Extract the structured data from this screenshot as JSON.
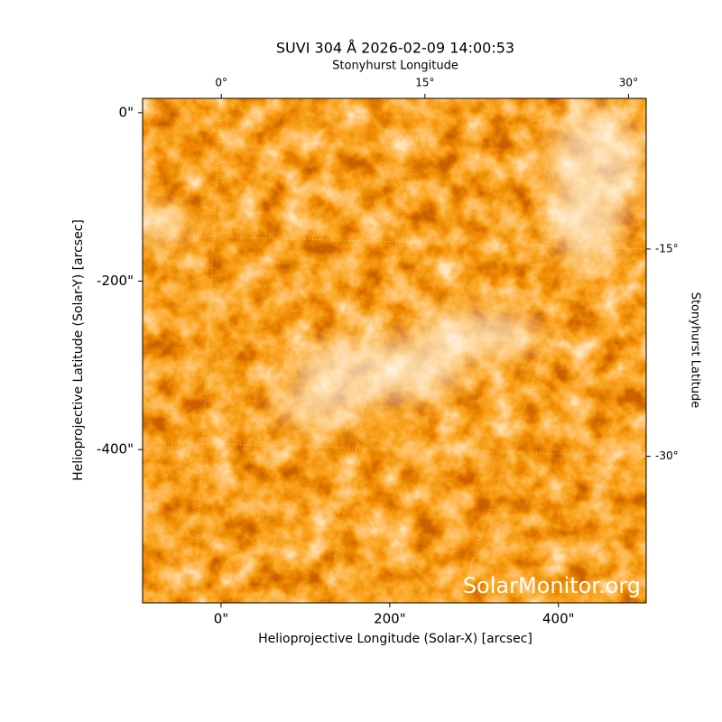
{
  "chart_data": {
    "type": "image",
    "title": "SUVI 304 Å 2026-02-09 14:00:53",
    "xlabel": "Helioprojective Longitude (Solar-X) [arcsec]",
    "ylabel": "Helioprojective Latitude (Solar-Y) [arcsec]",
    "x2label": "Stonyhurst Longitude",
    "y2label": "Stonyhurst Latitude",
    "watermark": "SolarMonitor.org",
    "xlim": [
      -93,
      504
    ],
    "ylim": [
      -582,
      17
    ],
    "xticks": [
      {
        "value": 0,
        "label": "0\""
      },
      {
        "value": 200,
        "label": "200\""
      },
      {
        "value": 400,
        "label": "400\""
      }
    ],
    "yticks": [
      {
        "value": 0,
        "label": "0\""
      },
      {
        "value": -200,
        "label": "-200\""
      },
      {
        "value": -400,
        "label": "-400\""
      }
    ],
    "x2lim": [
      -5.8,
      31.3
    ],
    "x2ticks": [
      {
        "value": 0,
        "label": "0°"
      },
      {
        "value": 15,
        "label": "15°"
      },
      {
        "value": 30,
        "label": "30°"
      }
    ],
    "y2lim": [
      -40.6,
      -4.1
    ],
    "y2ticks": [
      {
        "value": -15,
        "label": "-15°"
      },
      {
        "value": -30,
        "label": "-30°"
      }
    ],
    "grid": true
  }
}
